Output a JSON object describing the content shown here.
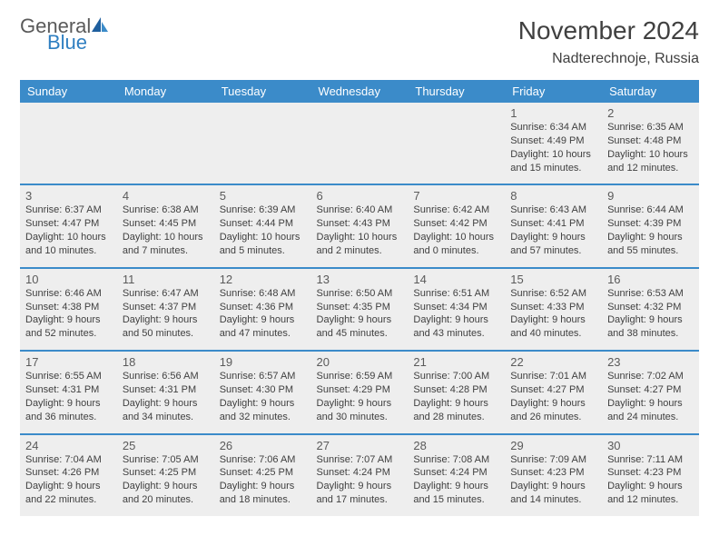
{
  "logo": {
    "word1": "General",
    "word2": "Blue"
  },
  "title": "November 2024",
  "location": "Nadterechnoje, Russia",
  "colors": {
    "header_bg": "#3b8bc9",
    "header_text": "#ffffff",
    "cell_bg": "#eeeeee",
    "border": "#3b8bc9",
    "text": "#404040",
    "logo_gray": "#5a5a5a",
    "logo_blue": "#2f7fc1"
  },
  "weekdays": [
    "Sunday",
    "Monday",
    "Tuesday",
    "Wednesday",
    "Thursday",
    "Friday",
    "Saturday"
  ],
  "weeks": [
    [
      {
        "day": "",
        "sunrise": "",
        "sunset": "",
        "daylight": ""
      },
      {
        "day": "",
        "sunrise": "",
        "sunset": "",
        "daylight": ""
      },
      {
        "day": "",
        "sunrise": "",
        "sunset": "",
        "daylight": ""
      },
      {
        "day": "",
        "sunrise": "",
        "sunset": "",
        "daylight": ""
      },
      {
        "day": "",
        "sunrise": "",
        "sunset": "",
        "daylight": ""
      },
      {
        "day": "1",
        "sunrise": "Sunrise: 6:34 AM",
        "sunset": "Sunset: 4:49 PM",
        "daylight": "Daylight: 10 hours and 15 minutes."
      },
      {
        "day": "2",
        "sunrise": "Sunrise: 6:35 AM",
        "sunset": "Sunset: 4:48 PM",
        "daylight": "Daylight: 10 hours and 12 minutes."
      }
    ],
    [
      {
        "day": "3",
        "sunrise": "Sunrise: 6:37 AM",
        "sunset": "Sunset: 4:47 PM",
        "daylight": "Daylight: 10 hours and 10 minutes."
      },
      {
        "day": "4",
        "sunrise": "Sunrise: 6:38 AM",
        "sunset": "Sunset: 4:45 PM",
        "daylight": "Daylight: 10 hours and 7 minutes."
      },
      {
        "day": "5",
        "sunrise": "Sunrise: 6:39 AM",
        "sunset": "Sunset: 4:44 PM",
        "daylight": "Daylight: 10 hours and 5 minutes."
      },
      {
        "day": "6",
        "sunrise": "Sunrise: 6:40 AM",
        "sunset": "Sunset: 4:43 PM",
        "daylight": "Daylight: 10 hours and 2 minutes."
      },
      {
        "day": "7",
        "sunrise": "Sunrise: 6:42 AM",
        "sunset": "Sunset: 4:42 PM",
        "daylight": "Daylight: 10 hours and 0 minutes."
      },
      {
        "day": "8",
        "sunrise": "Sunrise: 6:43 AM",
        "sunset": "Sunset: 4:41 PM",
        "daylight": "Daylight: 9 hours and 57 minutes."
      },
      {
        "day": "9",
        "sunrise": "Sunrise: 6:44 AM",
        "sunset": "Sunset: 4:39 PM",
        "daylight": "Daylight: 9 hours and 55 minutes."
      }
    ],
    [
      {
        "day": "10",
        "sunrise": "Sunrise: 6:46 AM",
        "sunset": "Sunset: 4:38 PM",
        "daylight": "Daylight: 9 hours and 52 minutes."
      },
      {
        "day": "11",
        "sunrise": "Sunrise: 6:47 AM",
        "sunset": "Sunset: 4:37 PM",
        "daylight": "Daylight: 9 hours and 50 minutes."
      },
      {
        "day": "12",
        "sunrise": "Sunrise: 6:48 AM",
        "sunset": "Sunset: 4:36 PM",
        "daylight": "Daylight: 9 hours and 47 minutes."
      },
      {
        "day": "13",
        "sunrise": "Sunrise: 6:50 AM",
        "sunset": "Sunset: 4:35 PM",
        "daylight": "Daylight: 9 hours and 45 minutes."
      },
      {
        "day": "14",
        "sunrise": "Sunrise: 6:51 AM",
        "sunset": "Sunset: 4:34 PM",
        "daylight": "Daylight: 9 hours and 43 minutes."
      },
      {
        "day": "15",
        "sunrise": "Sunrise: 6:52 AM",
        "sunset": "Sunset: 4:33 PM",
        "daylight": "Daylight: 9 hours and 40 minutes."
      },
      {
        "day": "16",
        "sunrise": "Sunrise: 6:53 AM",
        "sunset": "Sunset: 4:32 PM",
        "daylight": "Daylight: 9 hours and 38 minutes."
      }
    ],
    [
      {
        "day": "17",
        "sunrise": "Sunrise: 6:55 AM",
        "sunset": "Sunset: 4:31 PM",
        "daylight": "Daylight: 9 hours and 36 minutes."
      },
      {
        "day": "18",
        "sunrise": "Sunrise: 6:56 AM",
        "sunset": "Sunset: 4:31 PM",
        "daylight": "Daylight: 9 hours and 34 minutes."
      },
      {
        "day": "19",
        "sunrise": "Sunrise: 6:57 AM",
        "sunset": "Sunset: 4:30 PM",
        "daylight": "Daylight: 9 hours and 32 minutes."
      },
      {
        "day": "20",
        "sunrise": "Sunrise: 6:59 AM",
        "sunset": "Sunset: 4:29 PM",
        "daylight": "Daylight: 9 hours and 30 minutes."
      },
      {
        "day": "21",
        "sunrise": "Sunrise: 7:00 AM",
        "sunset": "Sunset: 4:28 PM",
        "daylight": "Daylight: 9 hours and 28 minutes."
      },
      {
        "day": "22",
        "sunrise": "Sunrise: 7:01 AM",
        "sunset": "Sunset: 4:27 PM",
        "daylight": "Daylight: 9 hours and 26 minutes."
      },
      {
        "day": "23",
        "sunrise": "Sunrise: 7:02 AM",
        "sunset": "Sunset: 4:27 PM",
        "daylight": "Daylight: 9 hours and 24 minutes."
      }
    ],
    [
      {
        "day": "24",
        "sunrise": "Sunrise: 7:04 AM",
        "sunset": "Sunset: 4:26 PM",
        "daylight": "Daylight: 9 hours and 22 minutes."
      },
      {
        "day": "25",
        "sunrise": "Sunrise: 7:05 AM",
        "sunset": "Sunset: 4:25 PM",
        "daylight": "Daylight: 9 hours and 20 minutes."
      },
      {
        "day": "26",
        "sunrise": "Sunrise: 7:06 AM",
        "sunset": "Sunset: 4:25 PM",
        "daylight": "Daylight: 9 hours and 18 minutes."
      },
      {
        "day": "27",
        "sunrise": "Sunrise: 7:07 AM",
        "sunset": "Sunset: 4:24 PM",
        "daylight": "Daylight: 9 hours and 17 minutes."
      },
      {
        "day": "28",
        "sunrise": "Sunrise: 7:08 AM",
        "sunset": "Sunset: 4:24 PM",
        "daylight": "Daylight: 9 hours and 15 minutes."
      },
      {
        "day": "29",
        "sunrise": "Sunrise: 7:09 AM",
        "sunset": "Sunset: 4:23 PM",
        "daylight": "Daylight: 9 hours and 14 minutes."
      },
      {
        "day": "30",
        "sunrise": "Sunrise: 7:11 AM",
        "sunset": "Sunset: 4:23 PM",
        "daylight": "Daylight: 9 hours and 12 minutes."
      }
    ]
  ]
}
